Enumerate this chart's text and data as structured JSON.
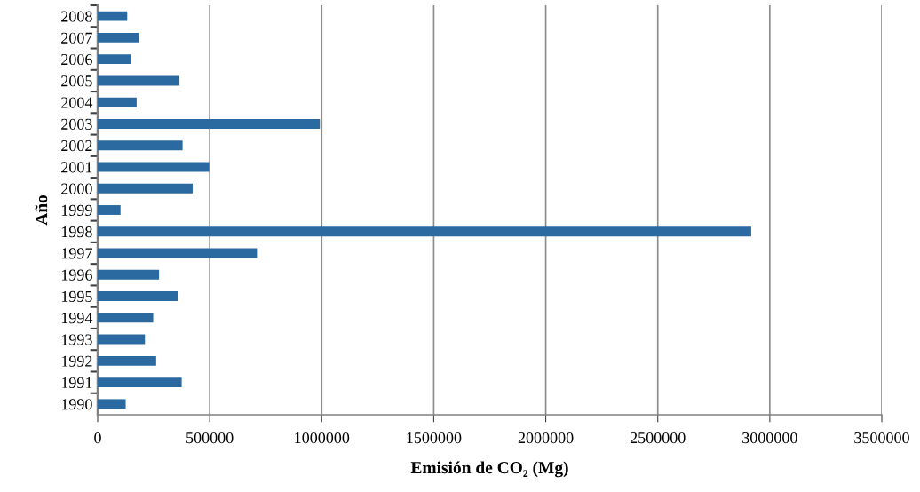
{
  "chart_data": {
    "type": "bar",
    "orientation": "horizontal",
    "xlabel": "Emisión de CO₂ (Mg)",
    "ylabel": "Año",
    "categories": [
      "2008",
      "2007",
      "2006",
      "2005",
      "2004",
      "2003",
      "2002",
      "2001",
      "2000",
      "1999",
      "1998",
      "1997",
      "1996",
      "1995",
      "1994",
      "1993",
      "1992",
      "1991",
      "1990"
    ],
    "values": [
      132000,
      184000,
      148000,
      365000,
      174000,
      992000,
      379000,
      498000,
      424000,
      102000,
      2917000,
      711000,
      274000,
      357000,
      248000,
      211000,
      261000,
      375000,
      125000
    ],
    "color": "#2a6aa1",
    "xlim": [
      0,
      3500000
    ],
    "xticks": [
      0,
      500000,
      1000000,
      1500000,
      2000000,
      2500000,
      3000000,
      3500000
    ],
    "grid": "x"
  }
}
